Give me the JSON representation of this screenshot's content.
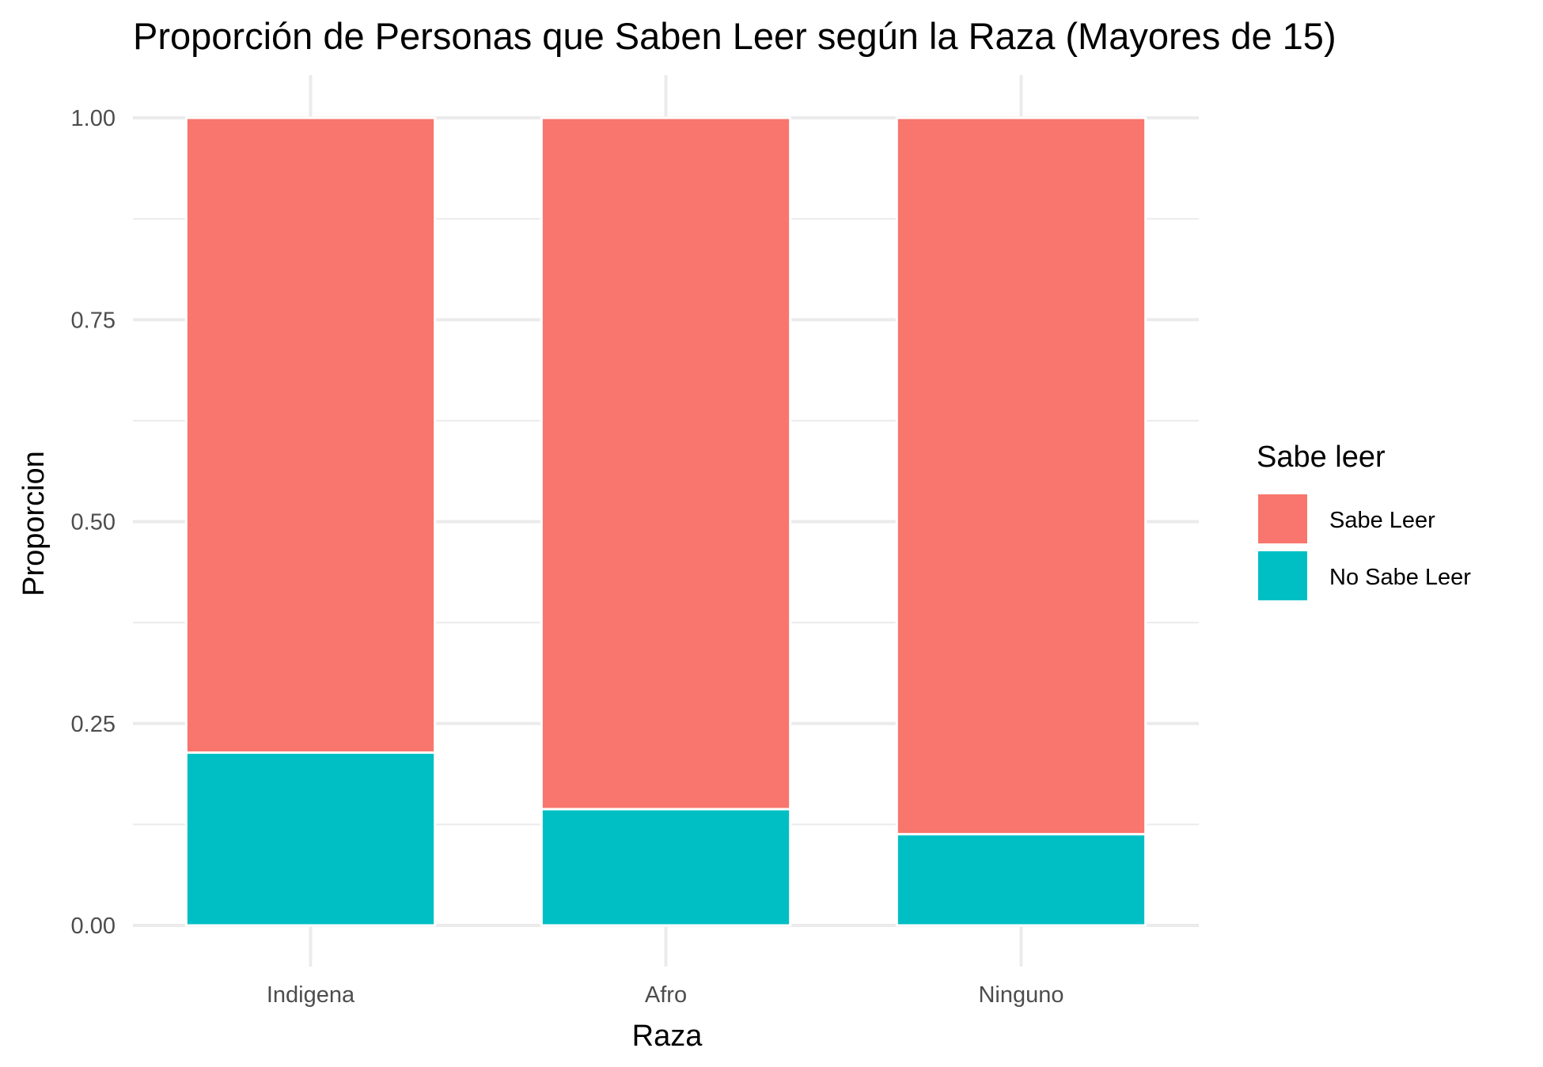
{
  "chart_data": {
    "type": "bar",
    "stacked": true,
    "title": "Proporción de Personas que Saben Leer según la Raza (Mayores de 15)",
    "xlabel": "Raza",
    "ylabel": "Proporcion",
    "categories": [
      "Indigena",
      "Afro",
      "Ninguno"
    ],
    "series": [
      {
        "name": "Sabe Leer",
        "color": "#F8766D",
        "values": [
          0.786,
          0.856,
          0.887
        ]
      },
      {
        "name": "No Sabe Leer",
        "color": "#00BFC4",
        "values": [
          0.214,
          0.144,
          0.113
        ]
      }
    ],
    "ylim": [
      0,
      1
    ],
    "yticks": [
      "0.00",
      "0.25",
      "0.50",
      "0.75",
      "1.00"
    ],
    "grid": true,
    "legend": {
      "title": "Sabe leer",
      "position": "right"
    }
  }
}
